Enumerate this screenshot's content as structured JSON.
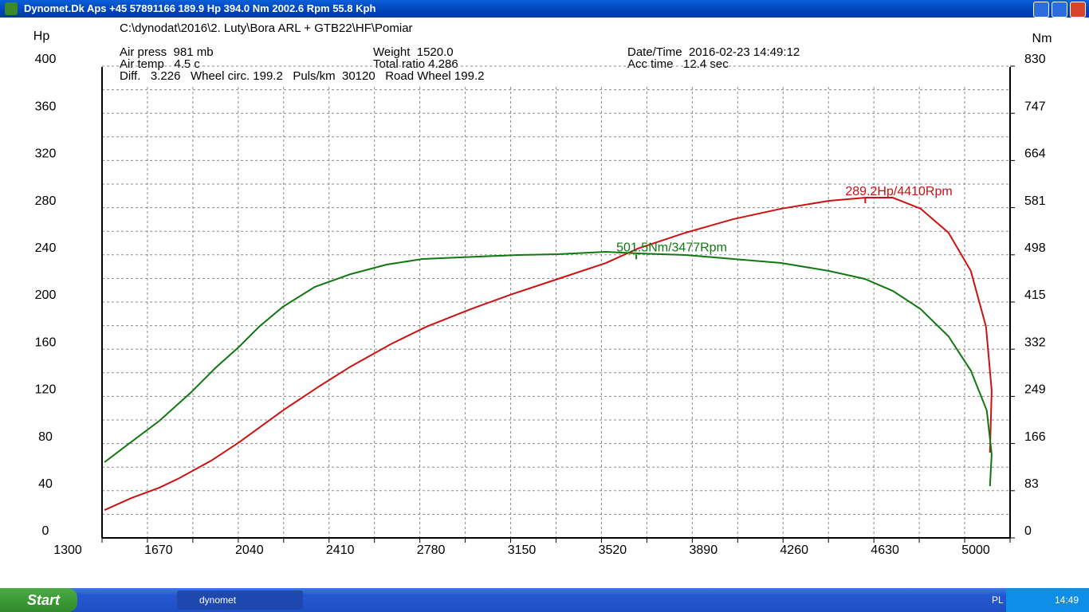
{
  "window": {
    "title": "Dynomet.Dk Aps +45 57891166  189.9 Hp 394.0 Nm 2002.6 Rpm 55.8 Kph"
  },
  "taskbar": {
    "start": "Start",
    "task": "dynomet",
    "language": "PL",
    "clock": "14:49"
  },
  "chart_data": {
    "type": "line",
    "info": [
      "C:\\dynodat\\2016\\2. Luty\\Bora ARL + GTB22\\HF\\Pomiar",
      "Air press  981 mb",
      "Air temp   4.5 c",
      "Diff.   3.226   Wheel circ. 199.2   Puls/km  30120   Road Wheel 199.2",
      "Weight  1520.0",
      "Total ratio 4.286",
      "Date/Time  2016-02-23 14:49:12",
      "Acc time   12.4 sec"
    ],
    "y_label": "Hp",
    "y2_label": "Nm",
    "xlim": [
      1300,
      5000
    ],
    "xticks": [
      1300,
      1670,
      2040,
      2410,
      2780,
      3150,
      3520,
      3890,
      4260,
      4630,
      5000
    ],
    "ylim": [
      0,
      400
    ],
    "yticks": [
      0,
      40,
      80,
      120,
      160,
      200,
      240,
      280,
      320,
      360,
      400
    ],
    "y2lim": [
      0,
      830
    ],
    "y2ticks": [
      0,
      83,
      166,
      249,
      332,
      415,
      498,
      581,
      664,
      747,
      830
    ],
    "grid": true,
    "series": [
      {
        "name": "Hp",
        "color": "#cc1111",
        "x": [
          1310,
          1420,
          1534,
          1615,
          1745,
          1859,
          2037,
          2184,
          2313,
          2476,
          2622,
          2801,
          2963,
          3158,
          3353,
          3483,
          3678,
          3873,
          4067,
          4262,
          4412,
          4522,
          4636,
          4749,
          4840,
          4902,
          4925,
          4918
        ],
        "values": [
          23.6,
          33.8,
          42.6,
          50.7,
          65.5,
          81.1,
          108.1,
          128.4,
          145.3,
          164.2,
          179.1,
          193.9,
          206.1,
          219.6,
          233.1,
          245.3,
          258.8,
          270.3,
          279.1,
          285.8,
          288.5,
          288.5,
          279.1,
          258.8,
          226.4,
          179.1,
          125.0,
          72.3
        ]
      },
      {
        "name": "Nm",
        "color": "#117711",
        "axis": "y2",
        "x": [
          1310,
          1404,
          1534,
          1664,
          1761,
          1859,
          1940,
          2037,
          2167,
          2313,
          2460,
          2606,
          2833,
          2996,
          3158,
          3353,
          3483,
          3678,
          3873,
          4067,
          4262,
          4408,
          4522,
          4636,
          4749,
          4840,
          4905,
          4925,
          4918
        ],
        "values": [
          133.2,
          164.0,
          206.1,
          256.6,
          298.6,
          336.5,
          371.5,
          406.6,
          441.6,
          464.1,
          480.9,
          490.7,
          494.9,
          497.7,
          499.1,
          503.3,
          500.5,
          497.7,
          490.7,
          483.7,
          469.7,
          455.7,
          434.6,
          402.4,
          354.7,
          294.4,
          224.3,
          147.2,
          91.1
        ]
      }
    ],
    "annotations": [
      {
        "text": "289.2Hp/4410Rpm",
        "x": 4410,
        "y": 289.2,
        "series": 0
      },
      {
        "text": "501.5Nm/3477Rpm",
        "x": 3477,
        "y": 501.5,
        "series": 1,
        "axis": "y2"
      }
    ]
  }
}
